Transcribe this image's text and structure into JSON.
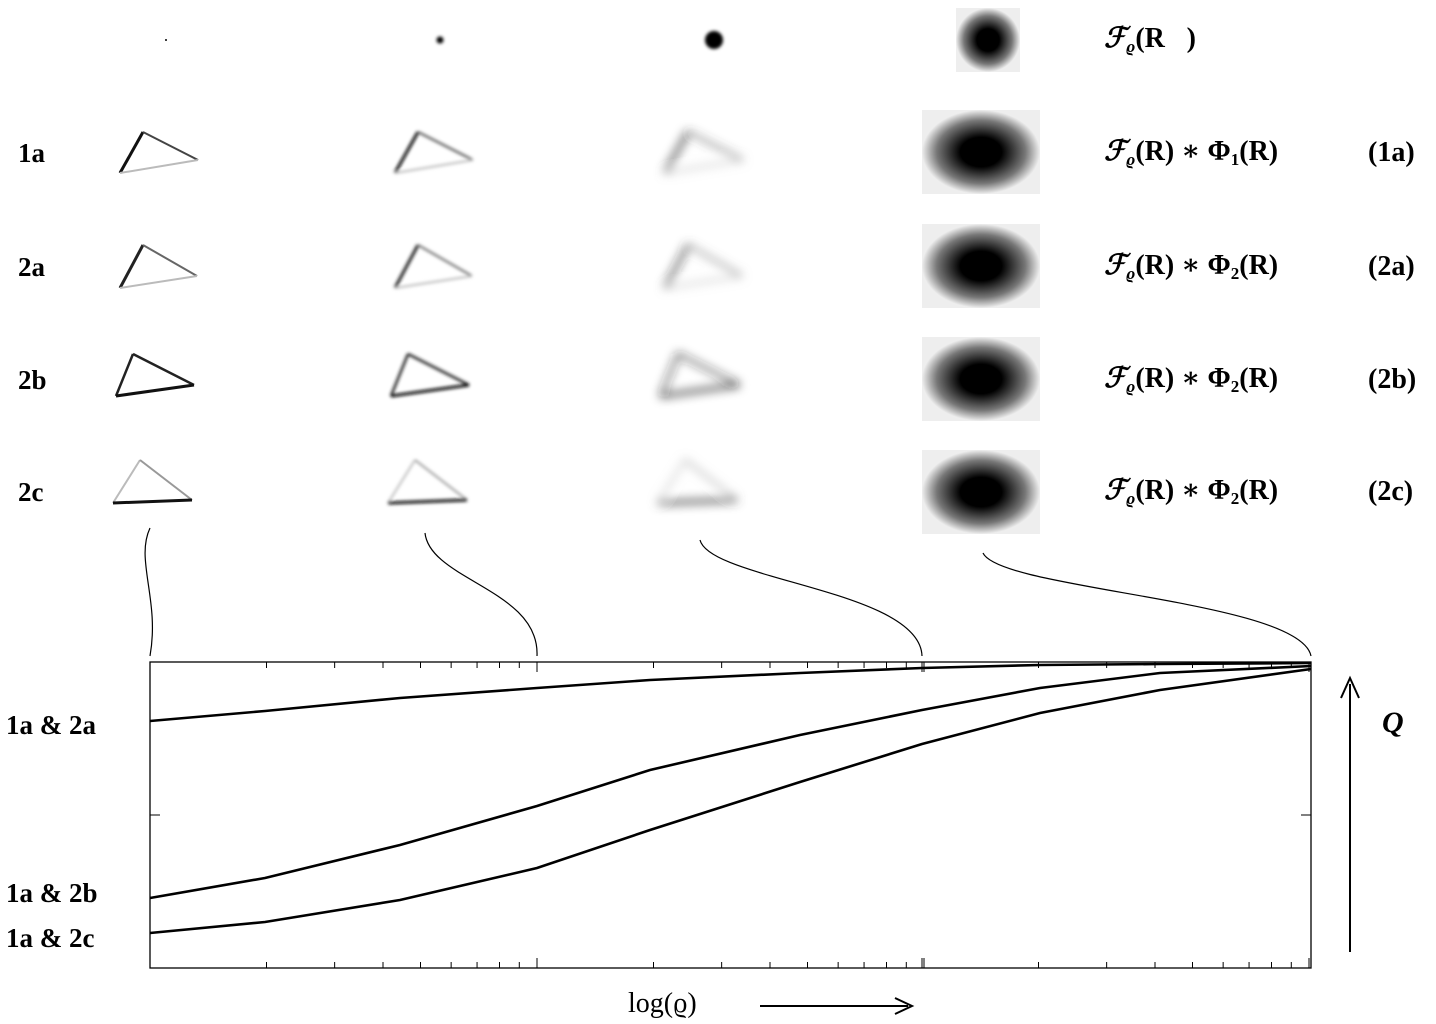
{
  "rows": [
    {
      "formula": {
        "symbol": "ℱ",
        "sub": "ϱ",
        "rest": "(R⃗)"
      }
    },
    {
      "label": "1a",
      "formula": {
        "symbol": "ℱ",
        "sub": "ϱ",
        "rest": "(R) ∗ Φ",
        "sub2": "1",
        "end": "(R)"
      },
      "tag": "(1a)"
    },
    {
      "label": "2a",
      "formula": {
        "symbol": "ℱ",
        "sub": "ϱ",
        "rest": "(R) ∗ Φ",
        "sub2": "2",
        "end": "(R)"
      },
      "tag": "(2a)"
    },
    {
      "label": "2b",
      "formula": {
        "symbol": "ℱ",
        "sub": "ϱ",
        "rest": "(R) ∗ Φ",
        "sub2": "2",
        "end": "(R)"
      },
      "tag": "(2b)"
    },
    {
      "label": "2c",
      "formula": {
        "symbol": "ℱ",
        "sub": "ϱ",
        "rest": "(R) ∗ Φ",
        "sub2": "2",
        "end": "(R)"
      },
      "tag": "(2c)"
    }
  ],
  "plot": {
    "curve_labels": [
      "1a & 2a",
      "1a & 2b",
      "1a & 2c"
    ],
    "x_label": "log(ϱ)",
    "y_label": "Q"
  }
}
